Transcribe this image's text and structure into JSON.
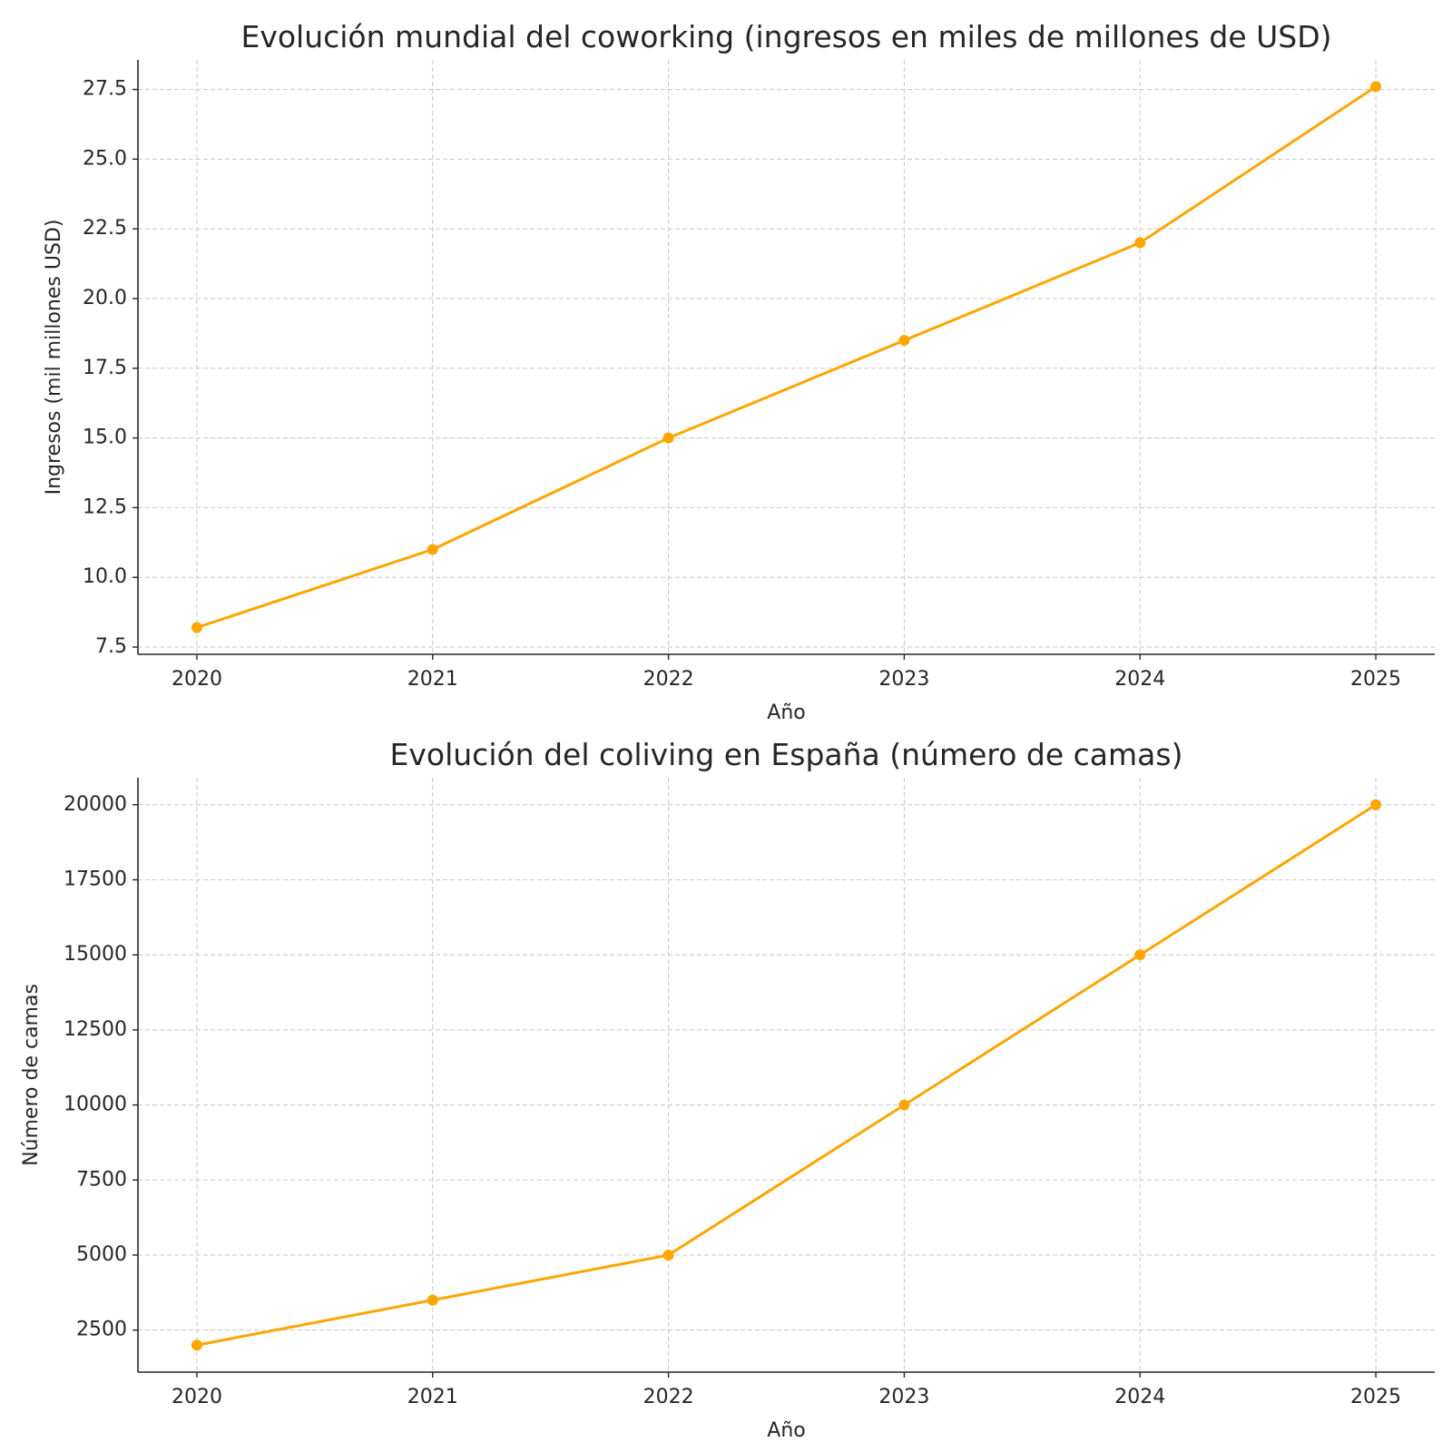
{
  "chart_data": [
    {
      "type": "line",
      "title": "Evolución mundial del coworking (ingresos en miles de millones de USD)",
      "xlabel": "Año",
      "ylabel": "Ingresos (mil millones USD)",
      "x": [
        2020,
        2021,
        2022,
        2023,
        2024,
        2025
      ],
      "series": [
        {
          "values": [
            8.2,
            11.0,
            15.0,
            18.5,
            22.0,
            27.6
          ]
        }
      ],
      "xlim": [
        2019.75,
        2025.25
      ],
      "ylim": [
        7.24,
        28.56
      ],
      "yticks": [
        7.5,
        10.0,
        12.5,
        15.0,
        17.5,
        20.0,
        22.5,
        25.0,
        27.5
      ],
      "ytick_labels": [
        "7.5",
        "10.0",
        "12.5",
        "15.0",
        "17.5",
        "20.0",
        "22.5",
        "25.0",
        "27.5"
      ],
      "xtick_labels": [
        "2020",
        "2021",
        "2022",
        "2023",
        "2024",
        "2025"
      ],
      "grid": true,
      "color": "#FFA500"
    },
    {
      "type": "line",
      "title": "Evolución del coliving en España (número de camas)",
      "xlabel": "Año",
      "ylabel": "Número de camas",
      "x": [
        2020,
        2021,
        2022,
        2023,
        2024,
        2025
      ],
      "series": [
        {
          "values": [
            2000,
            3500,
            5000,
            10000,
            15000,
            20000
          ]
        }
      ],
      "xlim": [
        2019.75,
        2025.25
      ],
      "ylim": [
        1100,
        20900
      ],
      "yticks": [
        2500,
        5000,
        7500,
        10000,
        12500,
        15000,
        17500,
        20000
      ],
      "ytick_labels": [
        "2500",
        "5000",
        "7500",
        "10000",
        "12500",
        "15000",
        "17500",
        "20000"
      ],
      "xtick_labels": [
        "2020",
        "2021",
        "2022",
        "2023",
        "2024",
        "2025"
      ],
      "grid": true,
      "color": "#FFA500"
    }
  ]
}
